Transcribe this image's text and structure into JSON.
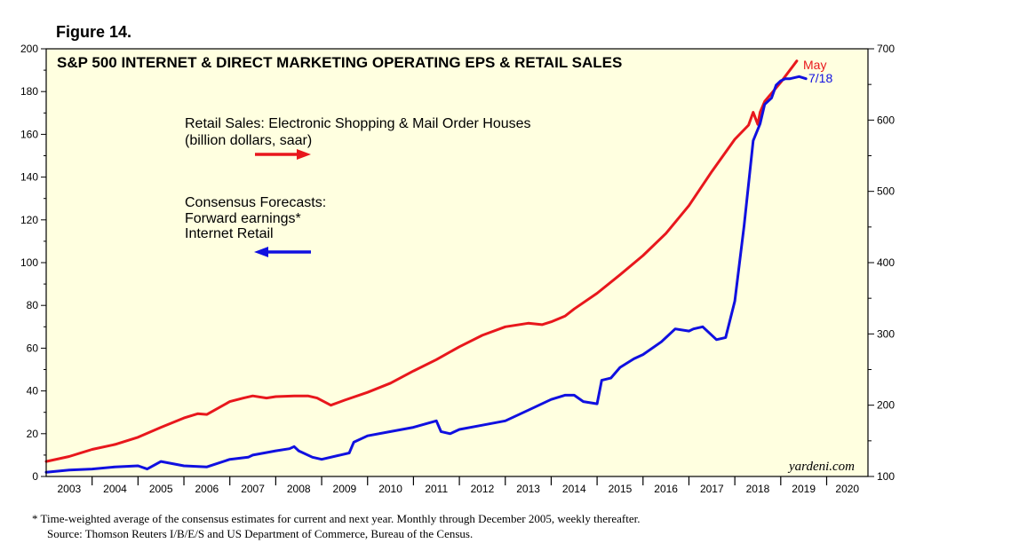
{
  "figure_label": "Figure 14.",
  "chart_data": {
    "type": "line",
    "title": "S&P 500 INTERNET & DIRECT MARKETING OPERATING EPS & RETAIL SALES",
    "x_axis": {
      "years": [
        "2003",
        "2004",
        "2005",
        "2006",
        "2007",
        "2008",
        "2009",
        "2010",
        "2011",
        "2012",
        "2013",
        "2014",
        "2015",
        "2016",
        "2017",
        "2018",
        "2019",
        "2020"
      ],
      "xlim": [
        2003.0,
        2020.9
      ]
    },
    "left_axis": {
      "ylim": [
        0,
        200
      ],
      "ticks": [
        0,
        20,
        40,
        60,
        80,
        100,
        120,
        140,
        160,
        180,
        200
      ]
    },
    "right_axis": {
      "ylim": [
        100,
        700
      ],
      "ticks": [
        100,
        200,
        300,
        400,
        500,
        600,
        700
      ]
    },
    "series": [
      {
        "name": "Retail Sales: Electronic Shopping & Mail Order Houses (billion dollars, saar)",
        "axis": "right",
        "color": "#e8171c",
        "end_label": "May",
        "legend_arrow": "right",
        "x": [
          2003.0,
          2003.5,
          2004.0,
          2004.5,
          2005.0,
          2005.5,
          2006.0,
          2006.3,
          2006.5,
          2007.0,
          2007.3,
          2007.5,
          2007.8,
          2008.0,
          2008.4,
          2008.7,
          2008.9,
          2009.2,
          2009.5,
          2010.0,
          2010.5,
          2011.0,
          2011.5,
          2012.0,
          2012.5,
          2013.0,
          2013.5,
          2013.8,
          2014.0,
          2014.3,
          2014.5,
          2015.0,
          2015.5,
          2016.0,
          2016.5,
          2017.0,
          2017.5,
          2018.0,
          2018.3,
          2018.4,
          2018.5,
          2018.55,
          2018.65,
          2019.0,
          2019.35
        ],
        "values": [
          121,
          128,
          138,
          145,
          155,
          169,
          182,
          188,
          187,
          205,
          210,
          213,
          210,
          212,
          213,
          213,
          210,
          200,
          207,
          218,
          231,
          248,
          264,
          282,
          298,
          310,
          315,
          313,
          317,
          325,
          335,
          357,
          383,
          410,
          441,
          480,
          528,
          573,
          593,
          611,
          594,
          611,
          626,
          653,
          683
        ]
      },
      {
        "name": "Consensus Forecasts: Forward earnings* Internet Retail",
        "axis": "left",
        "color": "#1010e0",
        "end_label": "7/18",
        "legend_arrow": "left",
        "x": [
          2003.0,
          2003.5,
          2004.0,
          2004.5,
          2005.0,
          2005.2,
          2005.5,
          2006.0,
          2006.5,
          2007.0,
          2007.4,
          2007.5,
          2008.0,
          2008.3,
          2008.4,
          2008.5,
          2008.8,
          2009.0,
          2009.4,
          2009.6,
          2009.7,
          2010.0,
          2010.5,
          2011.0,
          2011.5,
          2011.6,
          2011.8,
          2012.0,
          2012.5,
          2013.0,
          2013.5,
          2014.0,
          2014.3,
          2014.5,
          2014.7,
          2015.0,
          2015.1,
          2015.3,
          2015.5,
          2015.8,
          2016.0,
          2016.4,
          2016.7,
          2017.0,
          2017.1,
          2017.3,
          2017.6,
          2017.8,
          2018.0,
          2018.2,
          2018.4,
          2018.55,
          2018.65,
          2018.8,
          2018.9,
          2019.0,
          2019.1,
          2019.2,
          2019.4,
          2019.55
        ],
        "values": [
          2,
          3,
          3.5,
          4.5,
          5,
          3.5,
          7,
          5,
          4.5,
          8,
          9,
          10,
          12,
          13,
          14,
          12,
          9,
          8,
          10,
          11,
          16,
          19,
          21,
          23,
          26,
          21,
          20,
          22,
          24,
          26,
          31,
          36,
          38,
          38,
          35,
          34,
          45,
          46,
          51,
          55,
          57,
          63,
          69,
          68,
          69,
          70,
          64,
          65,
          82,
          117,
          157,
          165,
          174,
          177,
          183,
          185,
          186,
          186,
          187,
          186
        ]
      }
    ],
    "legend": [
      {
        "line1": "Retail Sales: Electronic Shopping & Mail Order Houses",
        "line2": "(billion dollars, saar)"
      },
      {
        "line1": "Consensus Forecasts:",
        "line2": "Forward earnings*",
        "line3": "Internet Retail"
      }
    ],
    "watermark": "yardeni.com"
  },
  "footnotes": [
    "*  Time-weighted average of the consensus estimates for current and next year. Monthly through December 2005, weekly thereafter.",
    "Source: Thomson Reuters I/B/E/S and US Department of Commerce, Bureau of the Census."
  ],
  "colors": {
    "plot_background": "#ffffe0",
    "retail": "#e8171c",
    "forecast": "#1010e0"
  }
}
